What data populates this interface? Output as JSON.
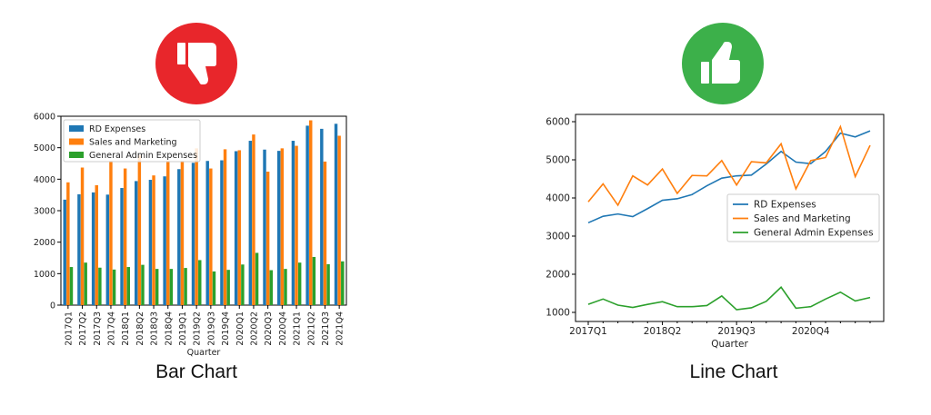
{
  "colors": {
    "rd": "#1f77b4",
    "sales": "#ff7f0e",
    "admin": "#2ca02c",
    "bad_icon_bg": "#e8262b",
    "good_icon_bg": "#3cb04a"
  },
  "icons": {
    "bad": "thumbs-down-icon",
    "good": "thumbs-up-icon"
  },
  "captions": {
    "bar": "Bar Chart",
    "line": "Line Chart"
  },
  "chart_data": [
    {
      "type": "bar",
      "xlabel": "Quarter",
      "ylabel": "",
      "ylim": [
        0,
        6000
      ],
      "yticks": [
        0,
        1000,
        2000,
        3000,
        4000,
        5000,
        6000
      ],
      "legend_position": "top-left",
      "categories": [
        "2017Q1",
        "2017Q2",
        "2017Q3",
        "2017Q4",
        "2018Q1",
        "2018Q2",
        "2018Q3",
        "2018Q4",
        "2019Q1",
        "2019Q2",
        "2019Q3",
        "2019Q4",
        "2020Q1",
        "2020Q2",
        "2020Q3",
        "2020Q4",
        "2021Q1",
        "2021Q2",
        "2021Q3",
        "2021Q4"
      ],
      "series": [
        {
          "name": "RD Expenses",
          "values": [
            3350,
            3520,
            3580,
            3510,
            3720,
            3940,
            3980,
            4090,
            4320,
            4520,
            4580,
            4600,
            4890,
            5220,
            4940,
            4900,
            5220,
            5700,
            5600,
            5760
          ]
        },
        {
          "name": "Sales and Marketing",
          "values": [
            3900,
            4370,
            3810,
            4580,
            4340,
            4760,
            4120,
            4590,
            4580,
            4980,
            4340,
            4950,
            4920,
            5420,
            4240,
            4980,
            5060,
            5870,
            4560,
            5380
          ]
        },
        {
          "name": "General Admin Expenses",
          "values": [
            1210,
            1350,
            1190,
            1130,
            1210,
            1280,
            1150,
            1150,
            1180,
            1430,
            1070,
            1120,
            1290,
            1660,
            1110,
            1150,
            1350,
            1530,
            1300,
            1390
          ]
        }
      ]
    },
    {
      "type": "line",
      "xlabel": "Quarter",
      "ylabel": "",
      "ylim": [
        1000,
        6000
      ],
      "yticks": [
        1000,
        2000,
        3000,
        4000,
        5000,
        6000
      ],
      "xtick_labels": [
        "2017Q1",
        "2018Q2",
        "2019Q3",
        "2020Q4"
      ],
      "legend_position": "center-right",
      "categories": [
        "2017Q1",
        "2017Q2",
        "2017Q3",
        "2017Q4",
        "2018Q1",
        "2018Q2",
        "2018Q3",
        "2018Q4",
        "2019Q1",
        "2019Q2",
        "2019Q3",
        "2019Q4",
        "2020Q1",
        "2020Q2",
        "2020Q3",
        "2020Q4",
        "2021Q1",
        "2021Q2",
        "2021Q3",
        "2021Q4"
      ],
      "series": [
        {
          "name": "RD Expenses",
          "values": [
            3350,
            3520,
            3580,
            3510,
            3720,
            3940,
            3980,
            4090,
            4320,
            4520,
            4580,
            4600,
            4890,
            5220,
            4940,
            4900,
            5220,
            5700,
            5600,
            5760
          ]
        },
        {
          "name": "Sales and Marketing",
          "values": [
            3900,
            4370,
            3810,
            4580,
            4340,
            4760,
            4120,
            4590,
            4580,
            4980,
            4340,
            4950,
            4920,
            5420,
            4240,
            4980,
            5060,
            5870,
            4560,
            5380
          ]
        },
        {
          "name": "General Admin Expenses",
          "values": [
            1210,
            1350,
            1190,
            1130,
            1210,
            1280,
            1150,
            1150,
            1180,
            1430,
            1070,
            1120,
            1290,
            1660,
            1110,
            1150,
            1350,
            1530,
            1300,
            1390
          ]
        }
      ]
    }
  ]
}
